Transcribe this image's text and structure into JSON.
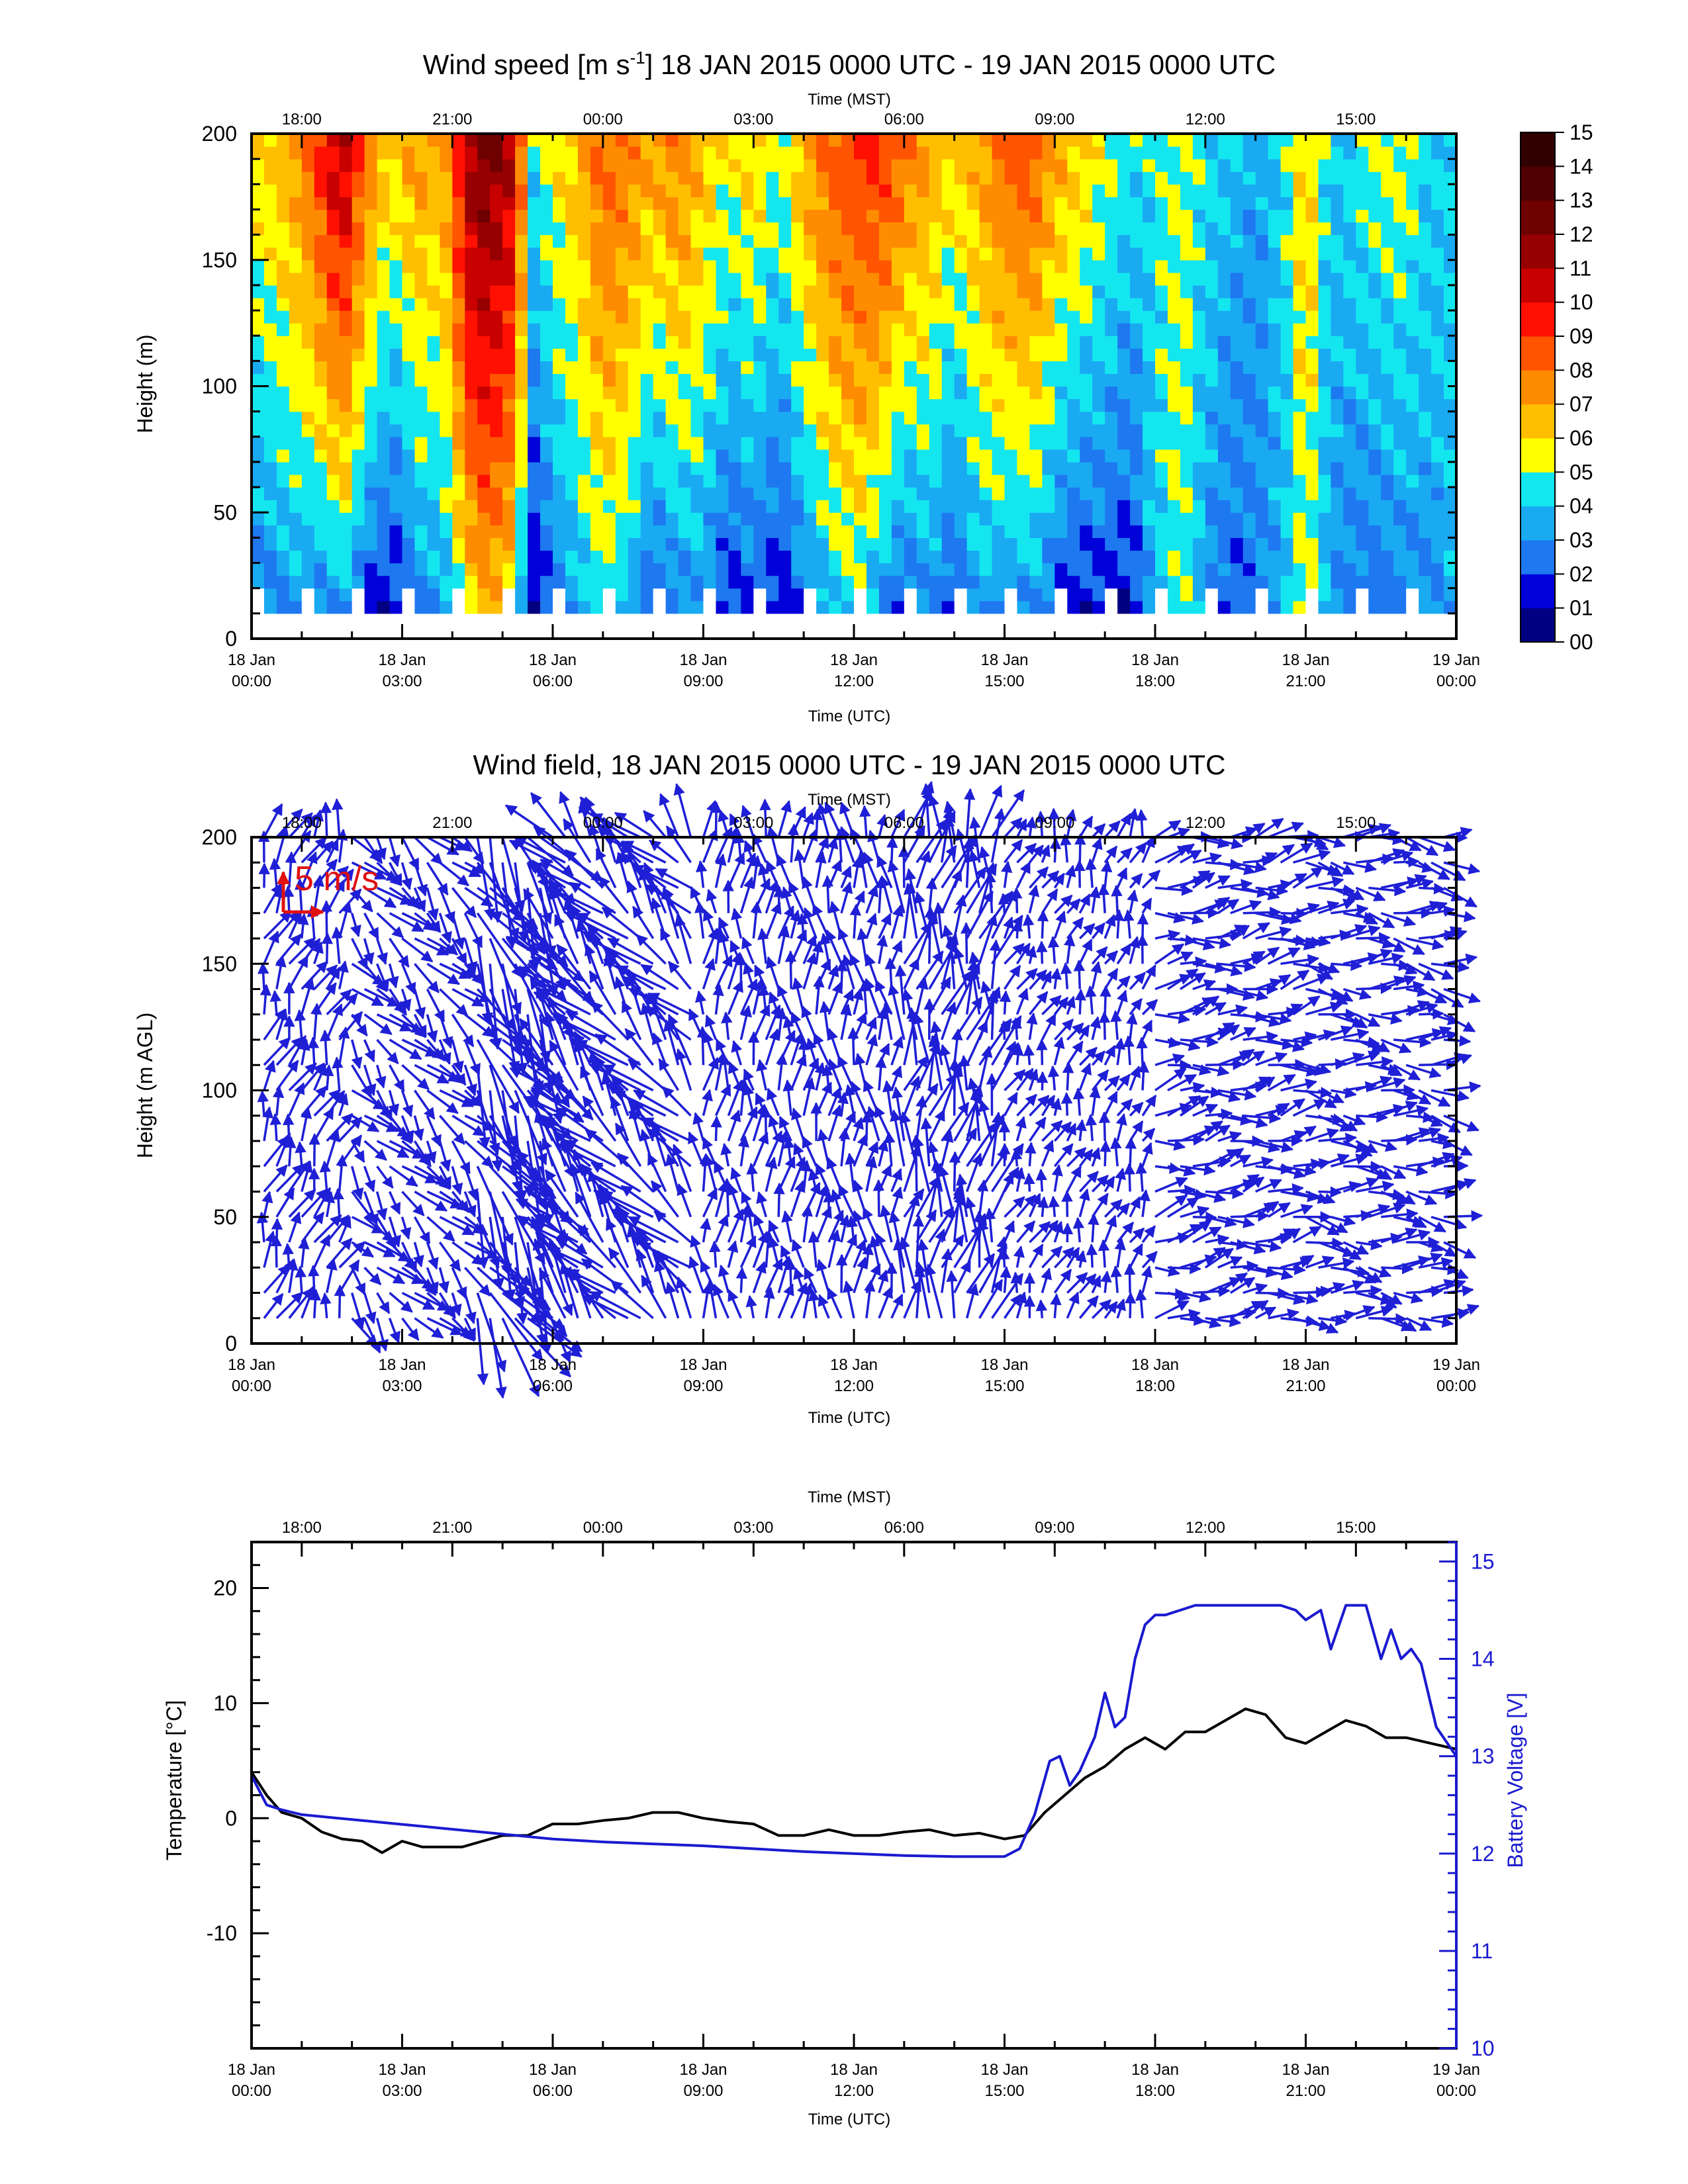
{
  "colors": {
    "axis": "#000000",
    "wind_arrow": "#1f1fd6",
    "temperature": "#000000",
    "battery": "#1a1ad0",
    "scale_arrow": "#e01010",
    "missing": "#ffffff"
  },
  "time_axes": {
    "utc_label": "Time (UTC)",
    "mst_label": "Time (MST)",
    "utc_ticks": [
      {
        "hour": 0,
        "top": "18 Jan",
        "bottom": "00:00"
      },
      {
        "hour": 3,
        "top": "18 Jan",
        "bottom": "03:00"
      },
      {
        "hour": 6,
        "top": "18 Jan",
        "bottom": "06:00"
      },
      {
        "hour": 9,
        "top": "18 Jan",
        "bottom": "09:00"
      },
      {
        "hour": 12,
        "top": "18 Jan",
        "bottom": "12:00"
      },
      {
        "hour": 15,
        "top": "18 Jan",
        "bottom": "15:00"
      },
      {
        "hour": 18,
        "top": "18 Jan",
        "bottom": "18:00"
      },
      {
        "hour": 21,
        "top": "18 Jan",
        "bottom": "21:00"
      },
      {
        "hour": 24,
        "top": "19 Jan",
        "bottom": "00:00"
      }
    ],
    "mst_ticks": [
      {
        "hour": 1,
        "label": "18:00"
      },
      {
        "hour": 4,
        "label": "21:00"
      },
      {
        "hour": 7,
        "label": "00:00"
      },
      {
        "hour": 10,
        "label": "03:00"
      },
      {
        "hour": 13,
        "label": "06:00"
      },
      {
        "hour": 16,
        "label": "09:00"
      },
      {
        "hour": 19,
        "label": "12:00"
      },
      {
        "hour": 22,
        "label": "15:00"
      }
    ]
  },
  "chart_data": [
    {
      "id": "wind-speed",
      "type": "heatmap",
      "title": "Wind speed [m s",
      "title_sup": "-1",
      "title_rest": "] 18 JAN 2015 0000 UTC - 19 JAN 2015 0000 UTC",
      "xlabel": "Time (UTC)",
      "x2label": "Time (MST)",
      "ylabel": "Height (m)",
      "xlim": [
        0,
        24
      ],
      "ylim": [
        0,
        200
      ],
      "yticks": [
        0,
        50,
        100,
        150,
        200
      ],
      "colorbar": {
        "labels": [
          "00",
          "01",
          "02",
          "03",
          "04",
          "05",
          "06",
          "07",
          "08",
          "09",
          "10",
          "11",
          "12",
          "13",
          "14",
          "15"
        ],
        "colors": [
          "#000080",
          "#0000d8",
          "#1e78f0",
          "#19aaf2",
          "#14e6f0",
          "#ffff00",
          "#ffbf00",
          "#ff8c00",
          "#ff5500",
          "#ff1000",
          "#c80000",
          "#960000",
          "#6e0000",
          "#500000",
          "#300000"
        ]
      },
      "height_range": [
        10,
        200
      ],
      "missing_bottom_below": 20,
      "columns_mean_speed": [
        {
          "t": 0.2,
          "lo": 2.5,
          "hi": 6.0
        },
        {
          "t": 0.8,
          "lo": 3.0,
          "hi": 7.0
        },
        {
          "t": 1.3,
          "lo": 2.5,
          "hi": 9.0
        },
        {
          "t": 1.8,
          "lo": 3.0,
          "hi": 11.5
        },
        {
          "t": 2.3,
          "lo": 1.5,
          "hi": 8.0
        },
        {
          "t": 2.8,
          "lo": 1.0,
          "hi": 6.0
        },
        {
          "t": 3.3,
          "lo": 2.5,
          "hi": 7.5
        },
        {
          "t": 3.8,
          "lo": 3.0,
          "hi": 6.5
        },
        {
          "t": 4.3,
          "lo": 5.5,
          "hi": 11.5
        },
        {
          "t": 4.7,
          "lo": 6.5,
          "hi": 12.5
        },
        {
          "t": 5.2,
          "lo": 5.5,
          "hi": 11.0
        },
        {
          "t": 5.6,
          "lo": 0.8,
          "hi": 4.5
        },
        {
          "t": 6.0,
          "lo": 2.0,
          "hi": 6.0
        },
        {
          "t": 6.5,
          "lo": 3.5,
          "hi": 6.5
        },
        {
          "t": 7.0,
          "lo": 4.5,
          "hi": 8.5
        },
        {
          "t": 7.5,
          "lo": 3.5,
          "hi": 8.0
        },
        {
          "t": 8.0,
          "lo": 1.5,
          "hi": 7.0
        },
        {
          "t": 8.5,
          "lo": 2.5,
          "hi": 8.0
        },
        {
          "t": 9.0,
          "lo": 3.0,
          "hi": 6.5
        },
        {
          "t": 9.5,
          "lo": 1.2,
          "hi": 5.5
        },
        {
          "t": 10.0,
          "lo": 2.0,
          "hi": 6.5
        },
        {
          "t": 10.5,
          "lo": 1.0,
          "hi": 5.0
        },
        {
          "t": 11.0,
          "lo": 2.5,
          "hi": 7.0
        },
        {
          "t": 11.5,
          "lo": 3.5,
          "hi": 8.5
        },
        {
          "t": 12.0,
          "lo": 4.5,
          "hi": 9.0
        },
        {
          "t": 12.5,
          "lo": 3.0,
          "hi": 9.5
        },
        {
          "t": 13.0,
          "lo": 1.5,
          "hi": 8.0
        },
        {
          "t": 13.5,
          "lo": 3.0,
          "hi": 7.0
        },
        {
          "t": 14.0,
          "lo": 1.5,
          "hi": 6.0
        },
        {
          "t": 14.5,
          "lo": 3.5,
          "hi": 7.0
        },
        {
          "t": 15.0,
          "lo": 2.5,
          "hi": 8.5
        },
        {
          "t": 15.5,
          "lo": 3.0,
          "hi": 9.0
        },
        {
          "t": 16.0,
          "lo": 2.0,
          "hi": 7.0
        },
        {
          "t": 16.5,
          "lo": 1.0,
          "hi": 6.5
        },
        {
          "t": 17.0,
          "lo": 1.5,
          "hi": 5.5
        },
        {
          "t": 17.5,
          "lo": 1.0,
          "hi": 4.5
        },
        {
          "t": 18.0,
          "lo": 4.0,
          "hi": 4.5
        },
        {
          "t": 18.5,
          "lo": 5.0,
          "hi": 5.5
        },
        {
          "t": 19.0,
          "lo": 3.0,
          "hi": 4.5
        },
        {
          "t": 19.5,
          "lo": 2.0,
          "hi": 4.0
        },
        {
          "t": 20.0,
          "lo": 2.5,
          "hi": 3.5
        },
        {
          "t": 20.5,
          "lo": 3.5,
          "hi": 4.0
        },
        {
          "t": 21.0,
          "lo": 5.5,
          "hi": 6.5
        },
        {
          "t": 21.5,
          "lo": 3.0,
          "hi": 4.0
        },
        {
          "t": 22.0,
          "lo": 2.5,
          "hi": 4.5
        },
        {
          "t": 22.5,
          "lo": 2.0,
          "hi": 5.5
        },
        {
          "t": 23.0,
          "lo": 2.5,
          "hi": 5.5
        },
        {
          "t": 23.5,
          "lo": 3.0,
          "hi": 4.0
        },
        {
          "t": 23.9,
          "lo": 3.5,
          "hi": 4.5
        }
      ]
    },
    {
      "id": "wind-field",
      "type": "scatter",
      "title": "Wind field, 18 JAN 2015 0000 UTC - 19 JAN 2015 0000 UTC",
      "xlabel": "Time (UTC)",
      "x2label": "Time (MST)",
      "ylabel": "Height (m AGL)",
      "xlim": [
        0,
        24
      ],
      "ylim": [
        0,
        200
      ],
      "yticks": [
        0,
        50,
        100,
        150,
        200
      ],
      "scale_vector": {
        "label": "5 m/s",
        "speed": 5
      },
      "heights": [
        10,
        20,
        30,
        40,
        50,
        60,
        70,
        80,
        90,
        100,
        110,
        120,
        130,
        140,
        150,
        160,
        170,
        180,
        190,
        200
      ],
      "time_step_hours": 0.25,
      "direction_regimes": [
        {
          "from": 0,
          "to": 2,
          "dir_deg": 200,
          "speed": 4
        },
        {
          "from": 2,
          "to": 4.5,
          "dir_deg": 320,
          "speed": 4
        },
        {
          "from": 4.5,
          "to": 5.8,
          "dir_deg": 330,
          "speed": 9
        },
        {
          "from": 5.8,
          "to": 9,
          "dir_deg": 140,
          "speed": 6
        },
        {
          "from": 9,
          "to": 13,
          "dir_deg": 180,
          "speed": 4
        },
        {
          "from": 13,
          "to": 15,
          "dir_deg": 190,
          "speed": 6
        },
        {
          "from": 15,
          "to": 18,
          "dir_deg": 200,
          "speed": 3
        },
        {
          "from": 18,
          "to": 21,
          "dir_deg": 260,
          "speed": 4
        },
        {
          "from": 21,
          "to": 24,
          "dir_deg": 275,
          "speed": 4
        }
      ]
    },
    {
      "id": "temperature-battery",
      "type": "line",
      "title": "",
      "xlabel": "Time (UTC)",
      "x2label": "Time (MST)",
      "ylabel": "Temperature [°C]",
      "y2label": "Battery Voltage [V]",
      "xlim": [
        0,
        24
      ],
      "ylim": [
        -20,
        24
      ],
      "y2lim": [
        10,
        15.2
      ],
      "yticks": [
        -10,
        0,
        10,
        20
      ],
      "y2ticks": [
        10,
        11,
        12,
        13,
        14,
        15
      ],
      "series": [
        {
          "name": "Temperature",
          "x": [
            0,
            0.3,
            0.6,
            1.0,
            1.4,
            1.8,
            2.2,
            2.6,
            3.0,
            3.4,
            3.8,
            4.2,
            4.6,
            5.0,
            5.5,
            6.0,
            6.5,
            7.0,
            7.5,
            8.0,
            8.5,
            9.0,
            9.5,
            10.0,
            10.5,
            11.0,
            11.5,
            12.0,
            12.5,
            13.0,
            13.5,
            14.0,
            14.5,
            15.0,
            15.4,
            15.8,
            16.2,
            16.6,
            17.0,
            17.4,
            17.8,
            18.2,
            18.6,
            19.0,
            19.4,
            19.8,
            20.2,
            20.6,
            21.0,
            21.4,
            21.8,
            22.2,
            22.6,
            23.0,
            23.5,
            24.0
          ],
          "y": [
            4,
            2,
            0.5,
            0,
            -1.2,
            -1.8,
            -2,
            -3,
            -2,
            -2.5,
            -2.5,
            -2.5,
            -2,
            -1.5,
            -1.5,
            -0.5,
            -0.5,
            -0.2,
            0,
            0.5,
            0.5,
            0,
            -0.3,
            -0.5,
            -1.5,
            -1.5,
            -1,
            -1.5,
            -1.5,
            -1.2,
            -1,
            -1.5,
            -1.3,
            -1.8,
            -1.5,
            0.5,
            2,
            3.5,
            4.5,
            6,
            7,
            6,
            7.5,
            7.5,
            8.5,
            9.5,
            9,
            7,
            6.5,
            7.5,
            8.5,
            8,
            7,
            7,
            6.5,
            6
          ]
        },
        {
          "name": "Battery Voltage",
          "axis": "right",
          "x": [
            0,
            0.3,
            0.6,
            1.0,
            2.0,
            3.0,
            4.0,
            5.0,
            6.0,
            7.0,
            8.0,
            9.0,
            10.0,
            11.0,
            12.0,
            13.0,
            14.0,
            15.0,
            15.3,
            15.6,
            15.9,
            16.1,
            16.3,
            16.5,
            16.8,
            17.0,
            17.2,
            17.4,
            17.6,
            17.8,
            18.0,
            18.2,
            18.5,
            18.8,
            19.0,
            19.5,
            20.0,
            20.5,
            20.8,
            21.0,
            21.3,
            21.5,
            21.8,
            22.2,
            22.5,
            22.7,
            22.9,
            23.1,
            23.3,
            23.6,
            24.0
          ],
          "y": [
            12.8,
            12.5,
            12.45,
            12.4,
            12.35,
            12.3,
            12.25,
            12.2,
            12.15,
            12.12,
            12.1,
            12.08,
            12.05,
            12.02,
            12.0,
            11.98,
            11.97,
            11.97,
            12.05,
            12.4,
            12.95,
            13.0,
            12.7,
            12.85,
            13.2,
            13.65,
            13.3,
            13.4,
            14.0,
            14.35,
            14.45,
            14.45,
            14.5,
            14.55,
            14.55,
            14.55,
            14.55,
            14.55,
            14.5,
            14.4,
            14.5,
            14.1,
            14.55,
            14.55,
            14.0,
            14.3,
            14.0,
            14.1,
            13.95,
            13.3,
            13.0
          ]
        }
      ]
    }
  ]
}
